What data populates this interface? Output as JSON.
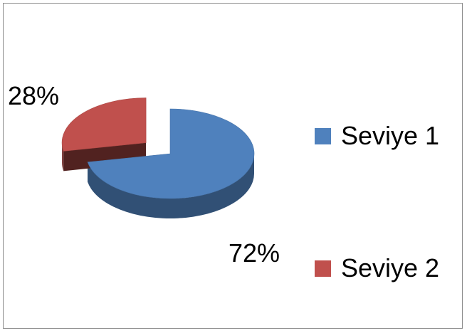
{
  "chart_data": {
    "type": "pie",
    "is_3d": true,
    "categories": [
      "Seviye 1",
      "Seviye 2"
    ],
    "values": [
      72,
      28
    ],
    "data_labels": [
      "72%",
      "28%"
    ],
    "colors": [
      "#4f81bd",
      "#c0504d"
    ],
    "exploded": [
      "",
      "Seviye 2"
    ],
    "legend_position": "right",
    "title": ""
  },
  "legend": {
    "items": [
      {
        "label": "Seviye 1",
        "color": "#4f81bd"
      },
      {
        "label": "Seviye 2",
        "color": "#c0504d"
      }
    ]
  }
}
